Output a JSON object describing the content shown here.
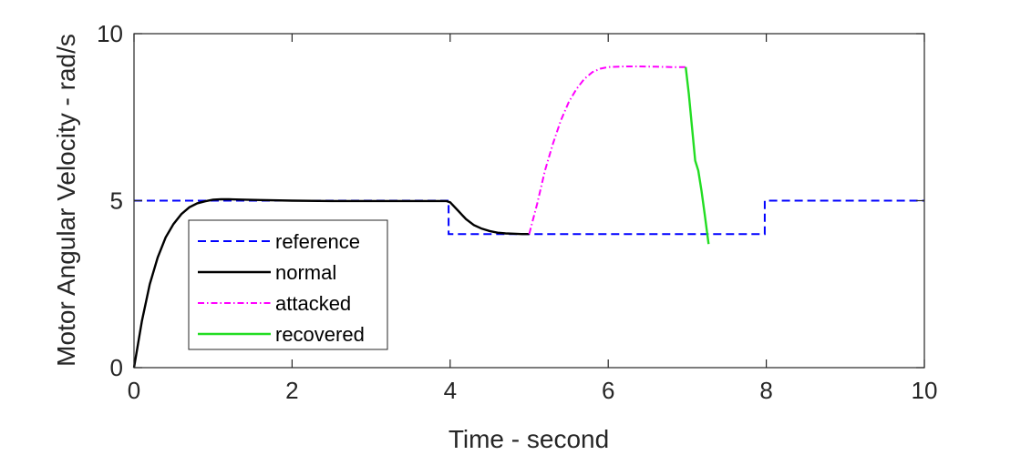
{
  "chart_data": {
    "type": "line",
    "title": "",
    "xlabel": "Time - second",
    "ylabel": "Motor Angular Velocity - rad/s",
    "xlim": [
      0,
      10
    ],
    "ylim": [
      0,
      10
    ],
    "xticks": [
      "0",
      "2",
      "4",
      "6",
      "8",
      "10"
    ],
    "yticks": [
      "0",
      "5",
      "10"
    ],
    "grid": false,
    "legend_position": "lower-left",
    "series": [
      {
        "name": "reference",
        "color": "#0000ff",
        "style": "dashed",
        "x": [
          0,
          3.98,
          3.98,
          7.98,
          7.98,
          10
        ],
        "y": [
          5,
          5,
          4,
          4,
          5,
          5
        ]
      },
      {
        "name": "normal",
        "color": "#000000",
        "style": "solid",
        "x": [
          0,
          0.1,
          0.2,
          0.3,
          0.4,
          0.5,
          0.6,
          0.7,
          0.8,
          0.9,
          1.0,
          1.1,
          1.2,
          1.4,
          1.6,
          2.0,
          2.5,
          3.0,
          3.5,
          3.95,
          4.0,
          4.1,
          4.2,
          4.3,
          4.4,
          4.5,
          4.6,
          4.7,
          4.8,
          4.9,
          5.0
        ],
        "y": [
          0,
          1.4,
          2.5,
          3.3,
          3.9,
          4.3,
          4.6,
          4.8,
          4.92,
          4.98,
          5.03,
          5.04,
          5.04,
          5.03,
          5.02,
          5.0,
          4.99,
          4.99,
          4.99,
          4.99,
          4.95,
          4.7,
          4.45,
          4.27,
          4.16,
          4.09,
          4.04,
          4.02,
          4.01,
          4.0,
          4.0
        ]
      },
      {
        "name": "attacked",
        "color": "#ff00ff",
        "style": "dashdot",
        "x": [
          5.0,
          5.1,
          5.2,
          5.3,
          5.4,
          5.5,
          5.6,
          5.7,
          5.8,
          5.9,
          6.0,
          6.2,
          6.4,
          6.6,
          6.8,
          7.0
        ],
        "y": [
          4.0,
          4.9,
          5.9,
          6.7,
          7.4,
          7.95,
          8.35,
          8.65,
          8.85,
          8.95,
          9.0,
          9.02,
          9.02,
          9.01,
          9.0,
          9.0
        ]
      },
      {
        "name": "recovered",
        "color": "#22dd22",
        "style": "solid",
        "x": [
          6.98,
          7.02,
          7.06,
          7.1,
          7.14,
          7.18,
          7.22,
          7.27
        ],
        "y": [
          9.0,
          8.2,
          7.2,
          6.2,
          5.9,
          5.3,
          4.6,
          3.7
        ]
      }
    ]
  }
}
